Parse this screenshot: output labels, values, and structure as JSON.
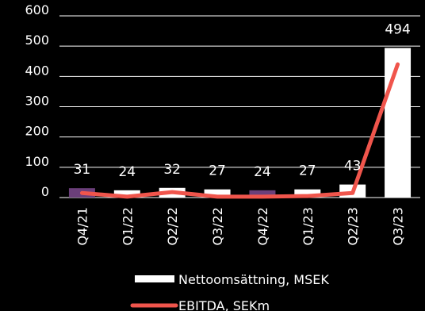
{
  "chart_data": {
    "type": "bar",
    "categories": [
      "Q4/21",
      "Q1/22",
      "Q2/22",
      "Q3/22",
      "Q4/22",
      "Q1/23",
      "Q2/23",
      "Q3/23"
    ],
    "series": [
      {
        "name": "Nettoomsättning, MSEK",
        "type": "bar",
        "values": [
          31,
          24,
          32,
          27,
          24,
          27,
          43,
          494
        ],
        "data_labels": [
          "31",
          "24",
          "32",
          "27",
          "24",
          "27",
          "43",
          "494"
        ],
        "color": "#ffffff",
        "highlight_color": "#6b3f7a",
        "highlighted_categories": [
          "Q4/21",
          "Q4/22"
        ]
      },
      {
        "name": "EBITDA, SEKm",
        "type": "line",
        "values": [
          15,
          3,
          18,
          3,
          3,
          5,
          15,
          440
        ],
        "color": "#f0554c"
      }
    ],
    "yticks": [
      "0",
      "100",
      "200",
      "300",
      "400",
      "500",
      "600"
    ],
    "ylim": [
      0,
      600
    ],
    "grid": true,
    "legend_position": "bottom"
  }
}
